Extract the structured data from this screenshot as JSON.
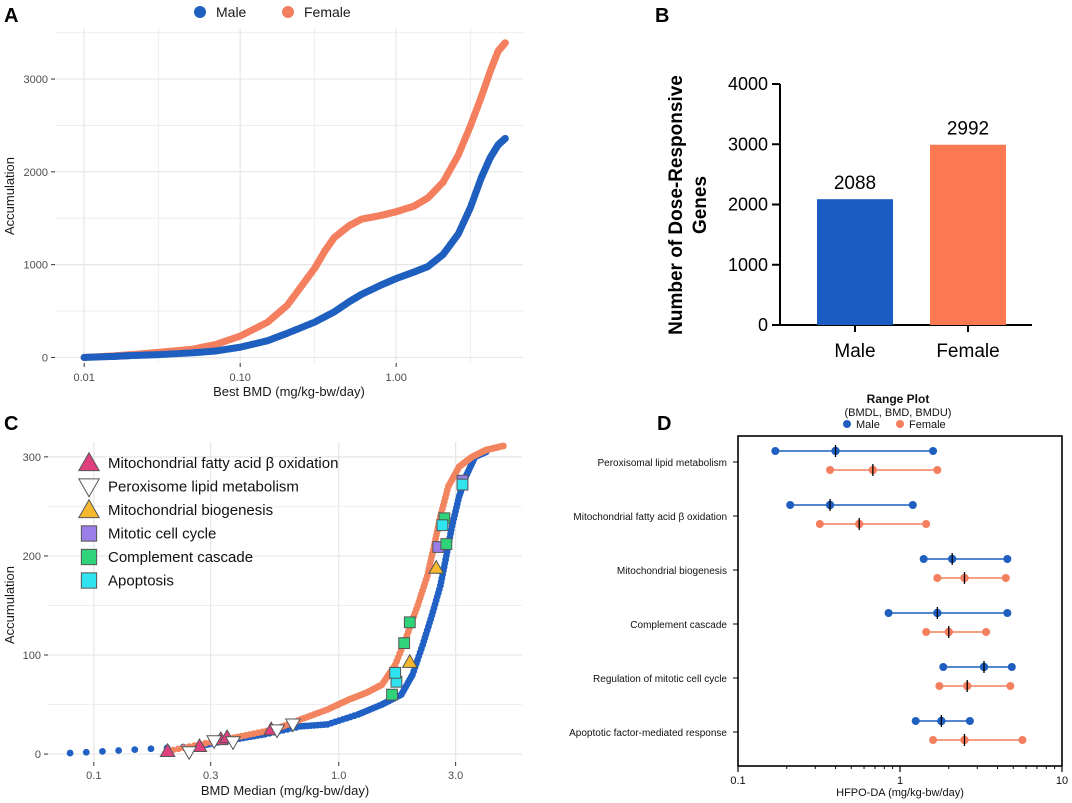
{
  "colors": {
    "male": "#1f5fbf",
    "female": "#f47f5e",
    "grid": "#e6e6e6",
    "panel_c_male": "#2160c4",
    "panel_c_female": "#f2845f"
  },
  "panel_letters": [
    "A",
    "B",
    "C",
    "D"
  ],
  "chart_data": [
    {
      "id": "A",
      "type": "scatter",
      "x_scale": "log",
      "legend": [
        "Male",
        "Female"
      ],
      "legend_position": "top",
      "xlabel": "Best BMD (mg/kg-bw/day)",
      "ylabel": "Accumulation",
      "x_ticks": [
        0.01,
        0.1,
        1.0
      ],
      "x_tick_labels": [
        "0.01",
        "0.10",
        "1.00"
      ],
      "y_ticks": [
        0,
        1000,
        2000,
        3000
      ],
      "y_tick_labels": [
        "0",
        "1000",
        "2000",
        "3000"
      ],
      "xlim": [
        0.0065,
        6.5
      ],
      "ylim": [
        -60,
        3550
      ],
      "series": [
        {
          "name": "Male",
          "color": "#1f5fbf",
          "points": [
            [
              0.01,
              0
            ],
            [
              0.015,
              10
            ],
            [
              0.02,
              20
            ],
            [
              0.03,
              30
            ],
            [
              0.05,
              50
            ],
            [
              0.07,
              70
            ],
            [
              0.1,
              110
            ],
            [
              0.15,
              180
            ],
            [
              0.2,
              260
            ],
            [
              0.3,
              380
            ],
            [
              0.4,
              490
            ],
            [
              0.5,
              600
            ],
            [
              0.6,
              680
            ],
            [
              0.8,
              780
            ],
            [
              1.0,
              850
            ],
            [
              1.3,
              920
            ],
            [
              1.6,
              980
            ],
            [
              2.0,
              1110
            ],
            [
              2.5,
              1330
            ],
            [
              3.0,
              1620
            ],
            [
              3.5,
              1930
            ],
            [
              4.0,
              2150
            ],
            [
              4.5,
              2290
            ],
            [
              5.0,
              2360
            ]
          ]
        },
        {
          "name": "Female",
          "color": "#f47f5e",
          "points": [
            [
              0.01,
              0
            ],
            [
              0.015,
              15
            ],
            [
              0.02,
              30
            ],
            [
              0.03,
              55
            ],
            [
              0.05,
              90
            ],
            [
              0.07,
              140
            ],
            [
              0.1,
              230
            ],
            [
              0.15,
              380
            ],
            [
              0.2,
              560
            ],
            [
              0.25,
              780
            ],
            [
              0.3,
              960
            ],
            [
              0.35,
              1150
            ],
            [
              0.4,
              1290
            ],
            [
              0.5,
              1420
            ],
            [
              0.6,
              1490
            ],
            [
              0.8,
              1530
            ],
            [
              1.0,
              1570
            ],
            [
              1.3,
              1630
            ],
            [
              1.6,
              1720
            ],
            [
              2.0,
              1890
            ],
            [
              2.5,
              2180
            ],
            [
              3.0,
              2500
            ],
            [
              3.5,
              2800
            ],
            [
              4.0,
              3080
            ],
            [
              4.5,
              3300
            ],
            [
              5.0,
              3390
            ]
          ]
        }
      ]
    },
    {
      "id": "B",
      "type": "bar",
      "categories": [
        "Male",
        "Female"
      ],
      "values": [
        2088,
        2992
      ],
      "data_labels": [
        "2088",
        "2992"
      ],
      "colors": [
        "#1a5cc2",
        "#fc7952"
      ],
      "ylabel_lines": [
        "Number of Dose-Responsive",
        "Genes"
      ],
      "y_ticks": [
        0,
        1000,
        2000,
        3000,
        4000
      ],
      "y_tick_labels": [
        "0",
        "1000",
        "2000",
        "3000",
        "4000"
      ],
      "ylim": [
        0,
        4000
      ]
    },
    {
      "id": "C",
      "type": "scatter",
      "x_scale": "log",
      "xlabel": "BMD Median (mg/kg-bw/day)",
      "ylabel": "Accumulation",
      "x_ticks": [
        0.1,
        0.3,
        1.0,
        3.0
      ],
      "x_tick_labels": [
        "0.1",
        "0.3",
        "1.0",
        "3.0"
      ],
      "y_ticks": [
        0,
        100,
        200,
        300
      ],
      "y_tick_labels": [
        "0",
        "100",
        "200",
        "300"
      ],
      "xlim": [
        0.065,
        5.6
      ],
      "ylim": [
        -8,
        315
      ],
      "legend": [
        {
          "label": "Mitochondrial fatty acid β oxidation",
          "marker": "triangle-up",
          "color": "#e0407e"
        },
        {
          "label": "Peroxisome lipid metabolism",
          "marker": "triangle-down",
          "color": "#ffffff"
        },
        {
          "label": "Mitochondrial biogenesis",
          "marker": "triangle-up",
          "color": "#f5b82e"
        },
        {
          "label": "Mitotic cell cycle",
          "marker": "square",
          "color": "#9b7ee8"
        },
        {
          "label": "Complement cascade",
          "marker": "square",
          "color": "#2fd47a"
        },
        {
          "label": "Apoptosis",
          "marker": "square",
          "color": "#2fe4ef"
        }
      ],
      "series": [
        {
          "name": "Male",
          "color": "#2160c4",
          "points": [
            [
              0.08,
              1
            ],
            [
              0.27,
              8
            ],
            [
              0.32,
              12
            ],
            [
              0.38,
              15
            ],
            [
              0.5,
              20
            ],
            [
              0.7,
              28
            ],
            [
              0.9,
              30
            ],
            [
              1.2,
              40
            ],
            [
              1.5,
              50
            ],
            [
              1.8,
              60
            ],
            [
              2.0,
              80
            ],
            [
              2.2,
              110
            ],
            [
              2.4,
              140
            ],
            [
              2.6,
              170
            ],
            [
              2.75,
              200
            ],
            [
              2.9,
              230
            ],
            [
              3.1,
              260
            ],
            [
              3.3,
              280
            ],
            [
              3.6,
              300
            ],
            [
              4.0,
              305
            ]
          ]
        },
        {
          "name": "Female",
          "color": "#f2845f",
          "points": [
            [
              0.2,
              3
            ],
            [
              0.3,
              12
            ],
            [
              0.4,
              18
            ],
            [
              0.55,
              25
            ],
            [
              0.7,
              35
            ],
            [
              0.9,
              45
            ],
            [
              1.1,
              55
            ],
            [
              1.3,
              62
            ],
            [
              1.5,
              70
            ],
            [
              1.7,
              90
            ],
            [
              1.9,
              120
            ],
            [
              2.1,
              150
            ],
            [
              2.3,
              180
            ],
            [
              2.45,
              210
            ],
            [
              2.6,
              240
            ],
            [
              2.8,
              270
            ],
            [
              3.1,
              290
            ],
            [
              3.5,
              300
            ],
            [
              4.0,
              307
            ],
            [
              4.7,
              311
            ]
          ]
        }
      ],
      "markers": [
        {
          "x": 0.2,
          "y": 3,
          "kind": 0
        },
        {
          "x": 0.27,
          "y": 8,
          "kind": 0
        },
        {
          "x": 0.33,
          "y": 15,
          "kind": 0
        },
        {
          "x": 0.35,
          "y": 17,
          "kind": 0
        },
        {
          "x": 0.53,
          "y": 25,
          "kind": 0
        },
        {
          "x": 0.245,
          "y": 2,
          "kind": 1
        },
        {
          "x": 0.31,
          "y": 13,
          "kind": 1
        },
        {
          "x": 0.37,
          "y": 12,
          "kind": 1
        },
        {
          "x": 0.56,
          "y": 24,
          "kind": 1
        },
        {
          "x": 0.65,
          "y": 30,
          "kind": 1
        },
        {
          "x": 1.95,
          "y": 93,
          "kind": 2
        },
        {
          "x": 2.5,
          "y": 188,
          "kind": 2
        },
        {
          "x": 2.55,
          "y": 209,
          "kind": 3
        },
        {
          "x": 3.2,
          "y": 276,
          "kind": 3
        },
        {
          "x": 1.65,
          "y": 60,
          "kind": 4
        },
        {
          "x": 1.85,
          "y": 112,
          "kind": 4
        },
        {
          "x": 1.95,
          "y": 133,
          "kind": 4
        },
        {
          "x": 2.75,
          "y": 212,
          "kind": 4
        },
        {
          "x": 2.7,
          "y": 238,
          "kind": 4
        },
        {
          "x": 1.72,
          "y": 73,
          "kind": 5
        },
        {
          "x": 1.7,
          "y": 82,
          "kind": 5
        },
        {
          "x": 2.65,
          "y": 231,
          "kind": 5
        },
        {
          "x": 3.2,
          "y": 272,
          "kind": 5
        }
      ]
    },
    {
      "id": "D",
      "type": "range",
      "title": "Range Plot",
      "subtitle": "(BMDL, BMD, BMDU)",
      "legend": [
        "Male",
        "Female"
      ],
      "xlabel": "HFPO-DA (mg/kg-bw/day)",
      "x_scale": "log",
      "x_ticks": [
        0.1,
        1,
        10
      ],
      "x_tick_labels": [
        "0.1",
        "1",
        "10"
      ],
      "xlim": [
        0.1,
        10
      ],
      "categories": [
        "Peroxisomal lipid metabolism",
        "Mitochondrial fatty acid β oxidation",
        "Mitochondrial biogenesis",
        "Complement cascade",
        "Regulation of mitotic cell cycle",
        "Apoptotic factor-mediated response"
      ],
      "series": [
        {
          "name": "Male",
          "color": "#1f5fbf",
          "ranges": [
            [
              0.17,
              0.4,
              1.6
            ],
            [
              0.21,
              0.37,
              1.2
            ],
            [
              1.4,
              2.1,
              4.6
            ],
            [
              0.85,
              1.7,
              4.6
            ],
            [
              1.85,
              3.3,
              4.9
            ],
            [
              1.25,
              1.8,
              2.7
            ]
          ]
        },
        {
          "name": "Female",
          "color": "#f47f5e",
          "ranges": [
            [
              0.37,
              0.68,
              1.7
            ],
            [
              0.32,
              0.56,
              1.45
            ],
            [
              1.7,
              2.5,
              4.5
            ],
            [
              1.45,
              2.0,
              3.4
            ],
            [
              1.75,
              2.6,
              4.8
            ],
            [
              1.6,
              2.5,
              5.7
            ]
          ]
        }
      ]
    }
  ]
}
